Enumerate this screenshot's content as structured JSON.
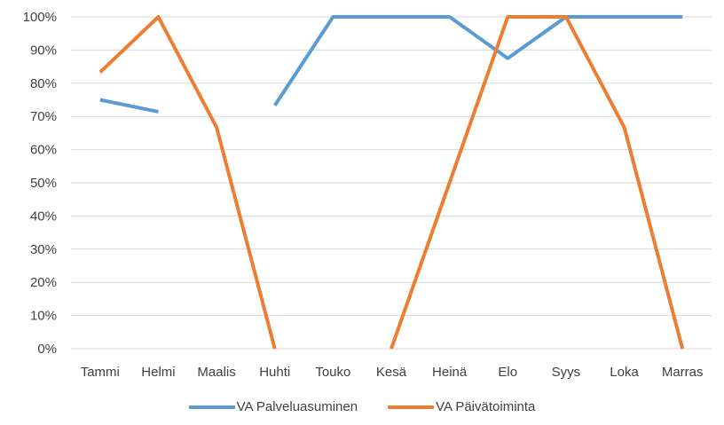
{
  "chart_data": {
    "type": "line",
    "categories": [
      "Tammi",
      "Helmi",
      "Maalis",
      "Huhti",
      "Touko",
      "Kesä",
      "Heinä",
      "Elo",
      "Syys",
      "Loka",
      "Marras"
    ],
    "y_ticks": [
      "0%",
      "10%",
      "20%",
      "30%",
      "40%",
      "50%",
      "60%",
      "70%",
      "80%",
      "90%",
      "100%"
    ],
    "ylim": [
      0,
      100
    ],
    "grid": true,
    "legend_position": "bottom",
    "series": [
      {
        "name": "VA Palveluasuminen",
        "color": "#5b9bd5",
        "values": [
          75,
          71.4,
          null,
          73.3,
          100,
          100,
          100,
          87.5,
          100,
          100,
          100
        ]
      },
      {
        "name": "VA Päivätoiminta",
        "color": "#ed7d31",
        "values": [
          83.3,
          100,
          66.7,
          0,
          null,
          0,
          50,
          100,
          100,
          66.7,
          0
        ]
      }
    ]
  }
}
